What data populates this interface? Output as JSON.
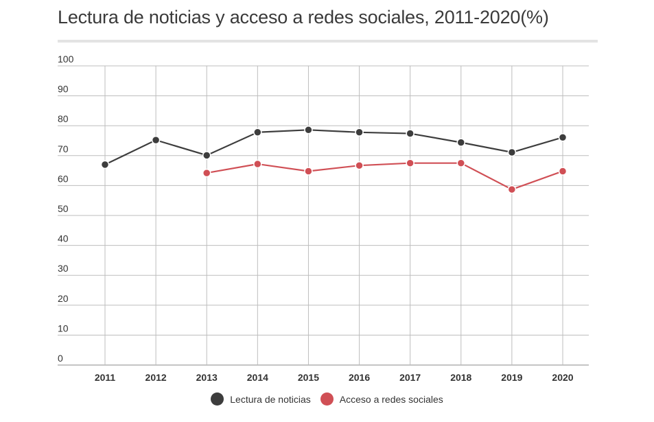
{
  "chart_data": {
    "type": "line",
    "title": "Lectura de noticias y acceso a redes sociales, 2011-2020(%)",
    "xlabel": "",
    "ylabel": "",
    "x": [
      "2011",
      "2012",
      "2013",
      "2014",
      "2015",
      "2016",
      "2017",
      "2018",
      "2019",
      "2020"
    ],
    "ylim": [
      0,
      100
    ],
    "yticks": [
      0,
      10,
      20,
      30,
      40,
      50,
      60,
      70,
      80,
      90,
      100
    ],
    "grid": true,
    "legend_position": "bottom",
    "series": [
      {
        "name": "Lectura de noticias",
        "color": "#3d3d3d",
        "values": [
          67,
          75.2,
          70.1,
          77.8,
          78.6,
          77.8,
          77.4,
          74.4,
          71.1,
          76.1
        ]
      },
      {
        "name": "Acceso a redes sociales",
        "color": "#d04f55",
        "values": [
          null,
          null,
          64.2,
          67.2,
          64.8,
          66.7,
          67.5,
          67.5,
          58.7,
          64.8
        ]
      }
    ]
  }
}
